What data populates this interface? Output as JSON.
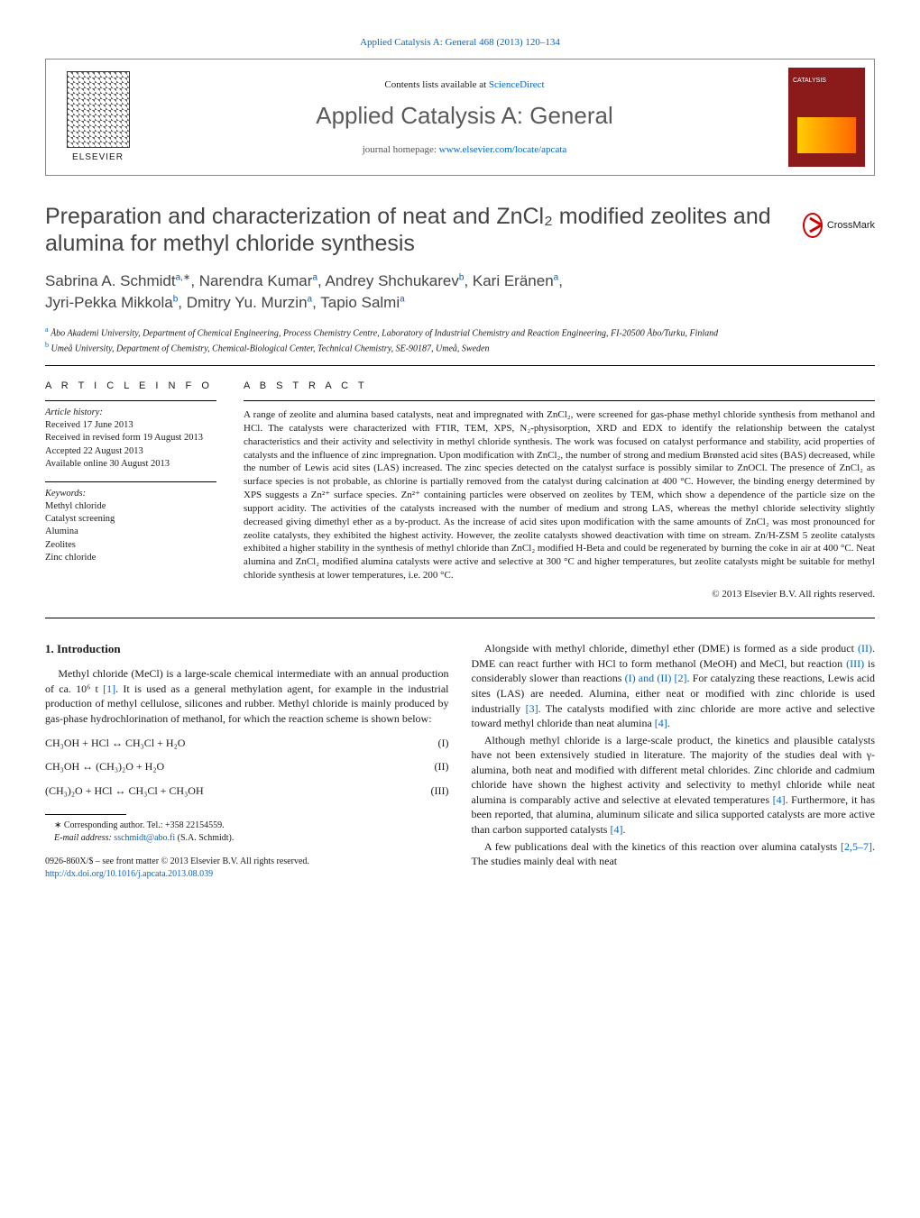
{
  "topLink": "Applied Catalysis A: General 468 (2013) 120–134",
  "header": {
    "contentsLine": "Contents lists available at ",
    "sciencedirect": "ScienceDirect",
    "journalName": "Applied Catalysis A: General",
    "homepageLabel": "journal homepage: ",
    "homepageUrl": "www.elsevier.com/locate/apcata",
    "elsevierLabel": "ELSEVIER",
    "coverTitle": "CATALYSIS"
  },
  "article": {
    "title": "Preparation and characterization of neat and ZnCl₂ modified zeolites and alumina for methyl chloride synthesis",
    "crossmark": "CrossMark",
    "authors": "Sabrina A. Schmidt",
    "authorsSup1": "a,",
    "authorsStar": "∗",
    "authors2": ", Narendra Kumar",
    "authorsSup2": "a",
    "authors3": ", Andrey Shchukarev",
    "authorsSup3": "b",
    "authors4": ", Kari Eränen",
    "authorsSup4": "a",
    "authors5": ",",
    "authors6": "Jyri-Pekka Mikkola",
    "authorsSup5": "b",
    "authors7": ", Dmitry Yu. Murzin",
    "authorsSup6": "a",
    "authors8": ", Tapio Salmi",
    "authorsSup7": "a",
    "affA": "Åbo Akademi University, Department of Chemical Engineering, Process Chemistry Centre, Laboratory of Industrial Chemistry and Reaction Engineering, FI-20500 Åbo/Turku, Finland",
    "affB": "Umeå University, Department of Chemistry, Chemical-Biological Center, Technical Chemistry, SE-90187, Umeå, Sweden"
  },
  "info": {
    "header": "A R T I C L E   I N F O",
    "historyLabel": "Article history:",
    "received": "Received 17 June 2013",
    "revised": "Received in revised form 19 August 2013",
    "accepted": "Accepted 22 August 2013",
    "online": "Available online 30 August 2013",
    "keywordsLabel": "Keywords:",
    "kw1": "Methyl chloride",
    "kw2": "Catalyst screening",
    "kw3": "Alumina",
    "kw4": "Zeolites",
    "kw5": "Zinc chloride"
  },
  "abstract": {
    "header": "A B S T R A C T",
    "text": "A range of zeolite and alumina based catalysts, neat and impregnated with ZnCl₂, were screened for gas-phase methyl chloride synthesis from methanol and HCl. The catalysts were characterized with FTIR, TEM, XPS, N₂-physisorption, XRD and EDX to identify the relationship between the catalyst characteristics and their activity and selectivity in methyl chloride synthesis. The work was focused on catalyst performance and stability, acid properties of catalysts and the influence of zinc impregnation. Upon modification with ZnCl₂, the number of strong and medium Brønsted acid sites (BAS) decreased, while the number of Lewis acid sites (LAS) increased. The zinc species detected on the catalyst surface is possibly similar to ZnOCl. The presence of ZnCl₂ as surface species is not probable, as chlorine is partially removed from the catalyst during calcination at 400 °C. However, the binding energy determined by XPS suggests a Zn²⁺ surface species. Zn²⁺ containing particles were observed on zeolites by TEM, which show a dependence of the particle size on the support acidity. The activities of the catalysts increased with the number of medium and strong LAS, whereas the methyl chloride selectivity slightly decreased giving dimethyl ether as a by-product. As the increase of acid sites upon modification with the same amounts of ZnCl₂ was most pronounced for zeolite catalysts, they exhibited the highest activity. However, the zeolite catalysts showed deactivation with time on stream. Zn/H-ZSM 5 zeolite catalysts exhibited a higher stability in the synthesis of methyl chloride than ZnCl₂ modified H-Beta and could be regenerated by burning the coke in air at 400 °C. Neat alumina and ZnCl₂ modified alumina catalysts were active and selective at 300 °C and higher temperatures, but zeolite catalysts might be suitable for methyl chloride synthesis at lower temperatures, i.e. 200 °C.",
    "copyright": "© 2013 Elsevier B.V. All rights reserved."
  },
  "intro": {
    "header": "1.  Introduction",
    "p1a": "Methyl chloride (MeCl) is a large-scale chemical intermediate with an annual production of ca. 10⁶ t ",
    "ref1": "[1]",
    "p1b": ". It is used as a general methylation agent, for example in the industrial production of methyl cellulose, silicones and rubber. Methyl chloride is mainly produced by gas-phase hydrochlorination of methanol, for which the reaction scheme is shown below:",
    "eq1": "CH₃OH + HCl ↔ CH₃Cl + H₂O",
    "eq1num": "(I)",
    "eq2": "CH₃OH ↔ (CH₃)₂O + H₂O",
    "eq2num": "(II)",
    "eq3": "(CH₃)₂O + HCl ↔ CH₃Cl + CH₃OH",
    "eq3num": "(III)"
  },
  "col2": {
    "p1a": "Alongside with methyl chloride, dimethyl ether (DME) is formed as a side product ",
    "refII": "(II)",
    "p1b": ". DME can react further with HCl to form methanol (MeOH) and MeCl, but reaction ",
    "refIII": "(III)",
    "p1c": " is considerably slower than reactions ",
    "refI_II": "(I) and (II) [2]",
    "p1d": ". For catalyzing these reactions, Lewis acid sites (LAS) are needed. Alumina, either neat or modified with zinc chloride is used industrially ",
    "ref3": "[3]",
    "p1e": ". The catalysts modified with zinc chloride are more active and selective toward methyl chloride than neat alumina ",
    "ref4": "[4]",
    "p1f": ".",
    "p2a": "Although methyl chloride is a large-scale product, the kinetics and plausible catalysts have not been extensively studied in literature. The majority of the studies deal with γ-alumina, both neat and modified with different metal chlorides. Zinc chloride and cadmium chloride have shown the highest activity and selectivity to methyl chloride while neat alumina is comparably active and selective at elevated temperatures ",
    "ref4b": "[4]",
    "p2b": ". Furthermore, it has been reported, that alumina, aluminum silicate and silica supported catalysts are more active than carbon supported catalysts ",
    "ref4c": "[4]",
    "p2c": ".",
    "p3a": "A few publications deal with the kinetics of this reaction over alumina catalysts ",
    "ref257": "[2,5–7]",
    "p3b": ". The studies mainly deal with neat"
  },
  "footnote": {
    "corr": "∗ Corresponding author. Tel.: +358 22154559.",
    "emailLabel": "E-mail address: ",
    "email": "sschmidt@abo.fi",
    "emailSuffix": " (S.A. Schmidt).",
    "copy1": "0926-860X/$ – see front matter © 2013 Elsevier B.V. All rights reserved.",
    "doi": "http://dx.doi.org/10.1016/j.apcata.2013.08.039"
  }
}
